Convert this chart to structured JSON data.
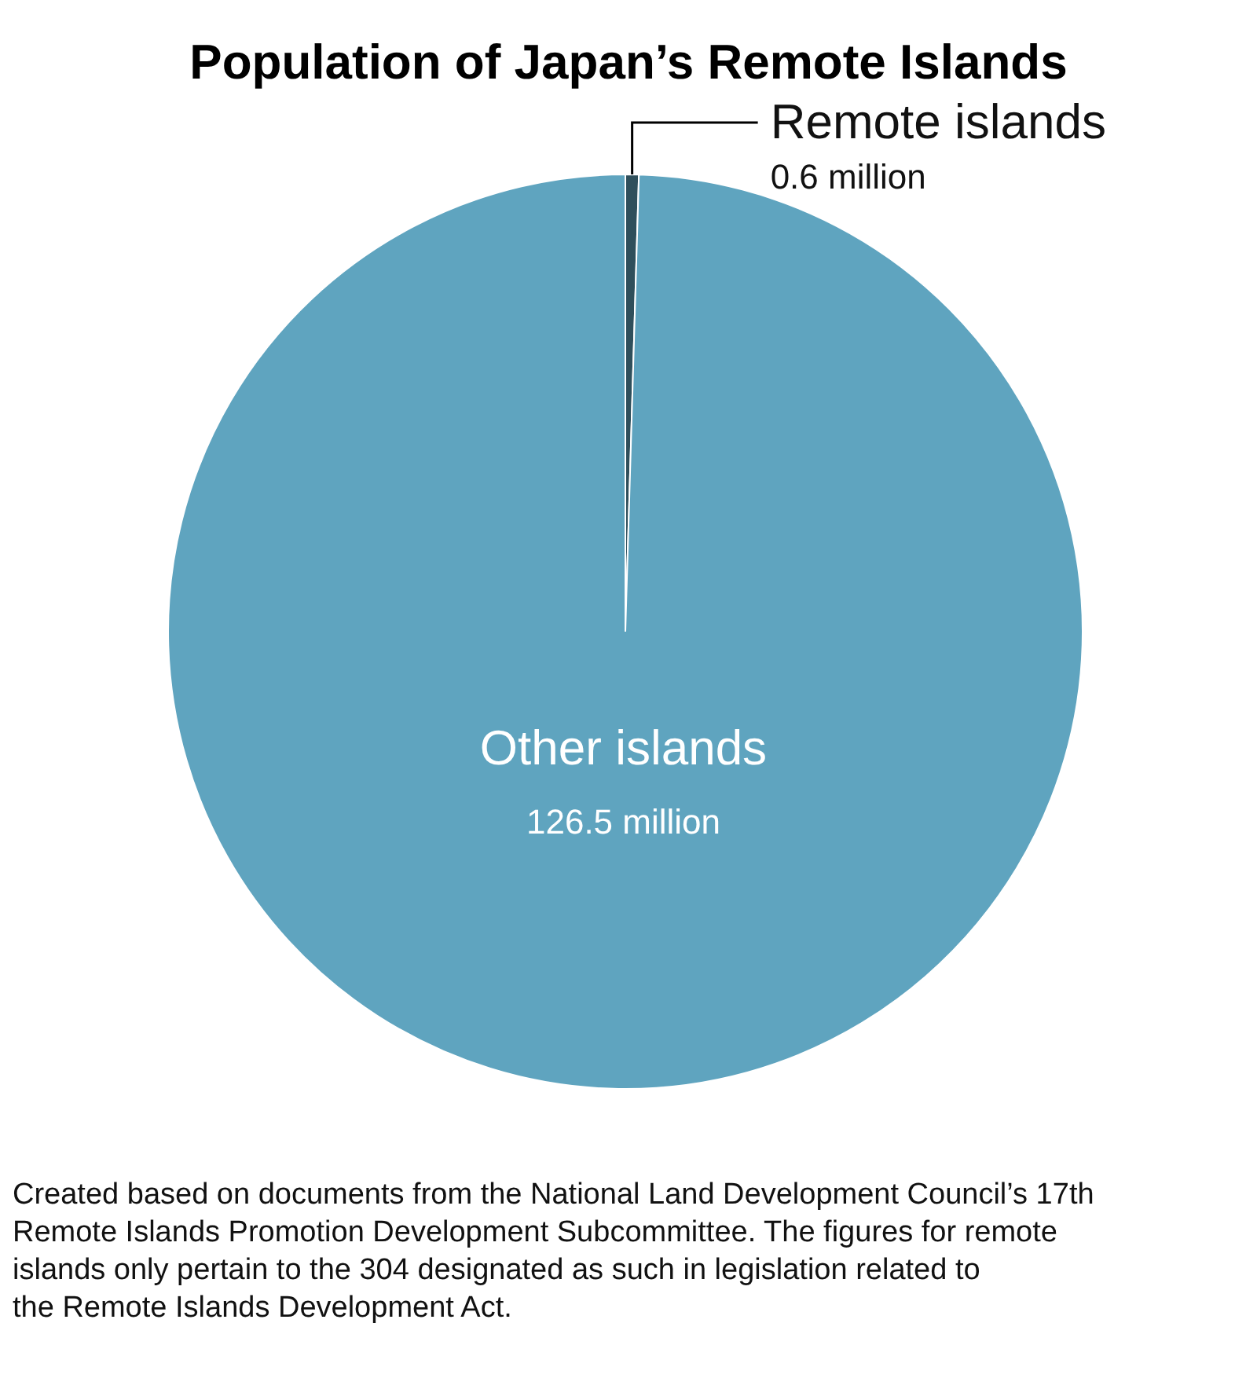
{
  "chart_data": {
    "type": "pie",
    "title": "Population of Japan’s Remote Islands",
    "categories": [
      "Remote islands",
      "Other islands"
    ],
    "values": [
      0.6,
      126.5
    ],
    "colors": [
      "#2f4f5b",
      "#5fa4bf"
    ],
    "value_labels": [
      "0.6 million",
      "126.5 million"
    ],
    "annotations": [
      "Created based on documents from the National Land Development Council’s 17th Remote Islands Promotion Development Subcommittee. The figures for remote islands only pertain to the 304 designated as such in legislation related to the Remote Islands Development Act."
    ]
  }
}
